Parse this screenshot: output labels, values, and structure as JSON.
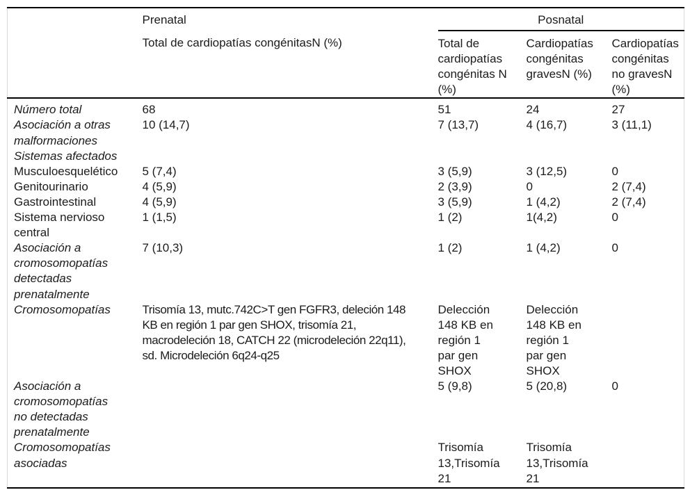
{
  "table": {
    "col_groups": {
      "prenatal": "Prenatal",
      "posnatal": "Posnatal"
    },
    "col_headers": {
      "prenatal_total": "Total de cardiopatías congénitasN (%)",
      "posnatal_total": "Total de\ncardiopatías\ncongénitas N\n(%)",
      "posnatal_graves": "Cardiopatías\ncongénitas\ngravesN (%)",
      "posnatal_no_graves": "Cardiopatías\ncongénitas\nno gravesN\n(%)"
    },
    "rows": [
      {
        "label": "Número total",
        "italic": true,
        "prenatal": "68",
        "posnatal_total": "51",
        "graves": "24",
        "no_graves": "27"
      },
      {
        "label": "Asociación a otras\nmalformaciones",
        "italic": true,
        "prenatal": "10 (14,7)",
        "posnatal_total": "7 (13,7)",
        "graves": "4 (16,7)",
        "no_graves": "3 (11,1)"
      },
      {
        "label": "Sistemas afectados",
        "italic": true,
        "prenatal": "",
        "posnatal_total": "",
        "graves": "",
        "no_graves": ""
      },
      {
        "label": "Musculoesquelético",
        "italic": false,
        "prenatal": "5 (7,4)",
        "posnatal_total": "3 (5,9)",
        "graves": "3 (12,5)",
        "no_graves": "0"
      },
      {
        "label": "Genitourinario",
        "italic": false,
        "prenatal": "4 (5,9)",
        "posnatal_total": "2 (3,9)",
        "graves": "0",
        "no_graves": "2 (7,4)"
      },
      {
        "label": "Gastrointestinal",
        "italic": false,
        "prenatal": "4 (5,9)",
        "posnatal_total": "3 (5,9)",
        "graves": "1 (4,2)",
        "no_graves": "2 (7,4)"
      },
      {
        "label": "Sistema nervioso\ncentral",
        "italic": false,
        "prenatal": "1 (1,5)",
        "posnatal_total": "1 (2)",
        "graves": "1(4,2)",
        "no_graves": "0"
      },
      {
        "label": "Asociación a\ncromosomopatías\ndetectadas\nprenatalmente",
        "italic": true,
        "prenatal": "7 (10,3)",
        "posnatal_total": "1 (2)",
        "graves": "1 (4,2)",
        "no_graves": "0"
      },
      {
        "label": "Cromosomopatías",
        "italic": true,
        "prenatal": "Trisomía 13, mutc.742C>T gen FGFR3, deleción 148\nKB en región 1 par gen SHOX, trisomía 21,\nmacrodeleción 18, CATCH 22 (microdeleción 22q11),\nsd. Microdeleción 6q24-q25",
        "posnatal_total": "Delección\n148 KB en\nregión 1\npar gen\nSHOX",
        "graves": "Delección\n148 KB en\nregión 1\npar gen\nSHOX",
        "no_graves": ""
      },
      {
        "label": "Asociación a\ncromosomopatías\nno detectadas\nprenatalmente",
        "italic": true,
        "prenatal": "",
        "posnatal_total": "5 (9,8)",
        "graves": "5 (20,8)",
        "no_graves": "0"
      },
      {
        "label": "Cromosomopatías\nasociadas",
        "italic": true,
        "prenatal": "",
        "posnatal_total": "Trisomía\n13,Trisomía\n21",
        "graves": "Trisomía\n13,Trisomía\n21",
        "no_graves": ""
      }
    ]
  }
}
